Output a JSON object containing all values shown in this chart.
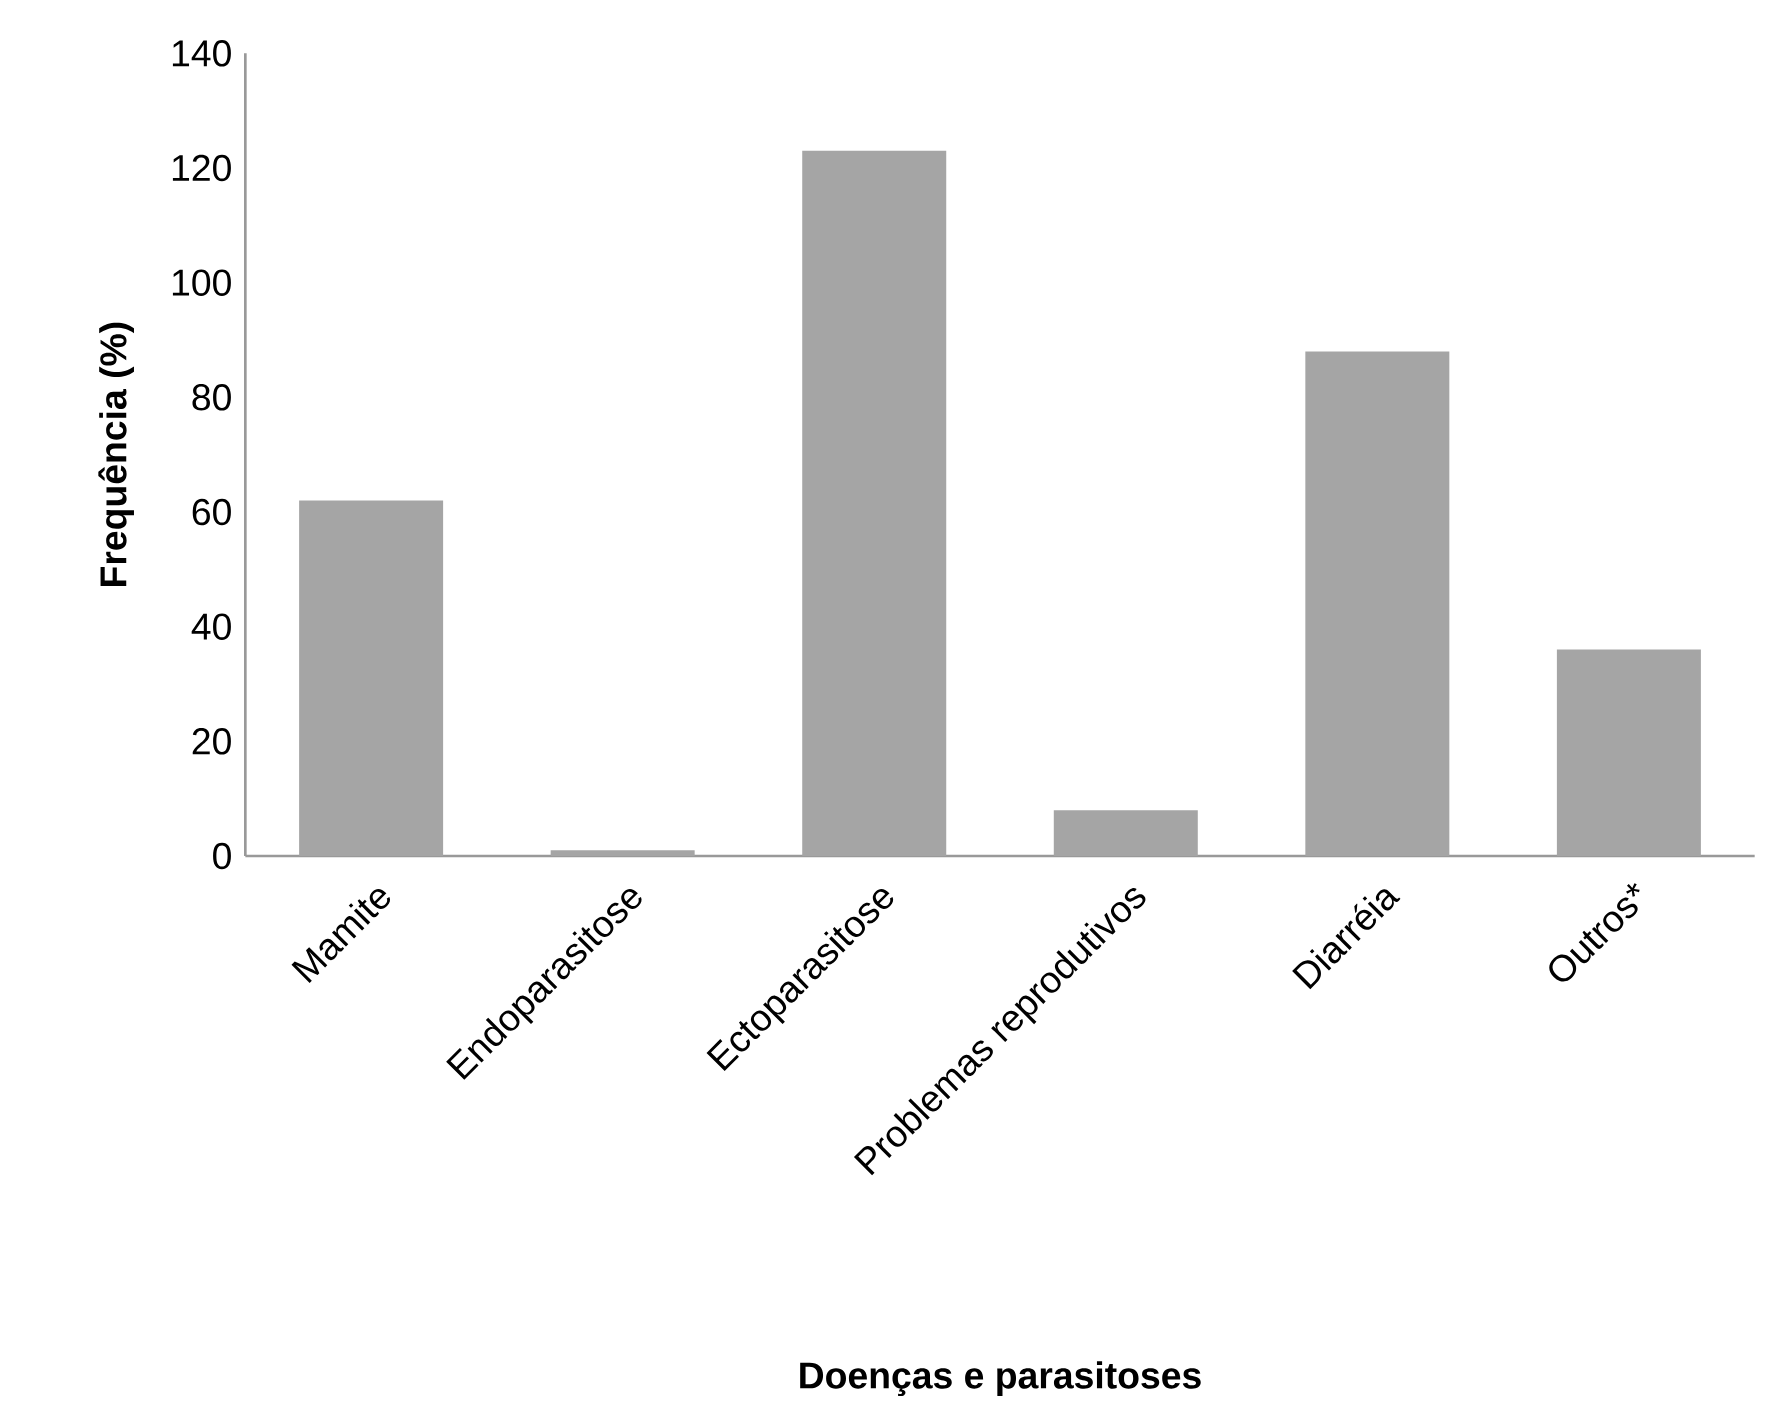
{
  "chart_data": {
    "type": "bar",
    "xlabel": "Doenças e parasitoses",
    "ylabel": "Frequência (%)",
    "categories": [
      "Mamite",
      "Endoparasitose",
      "Ectoparasitose",
      "Problemas reprodutivos",
      "Diarréia",
      "Outros*"
    ],
    "values": [
      62,
      1,
      123,
      8,
      88,
      36
    ],
    "color": "#a5a5a5",
    "ylim": [
      0,
      140
    ],
    "yticks": [
      0,
      20,
      40,
      60,
      80,
      100,
      120,
      140
    ]
  }
}
